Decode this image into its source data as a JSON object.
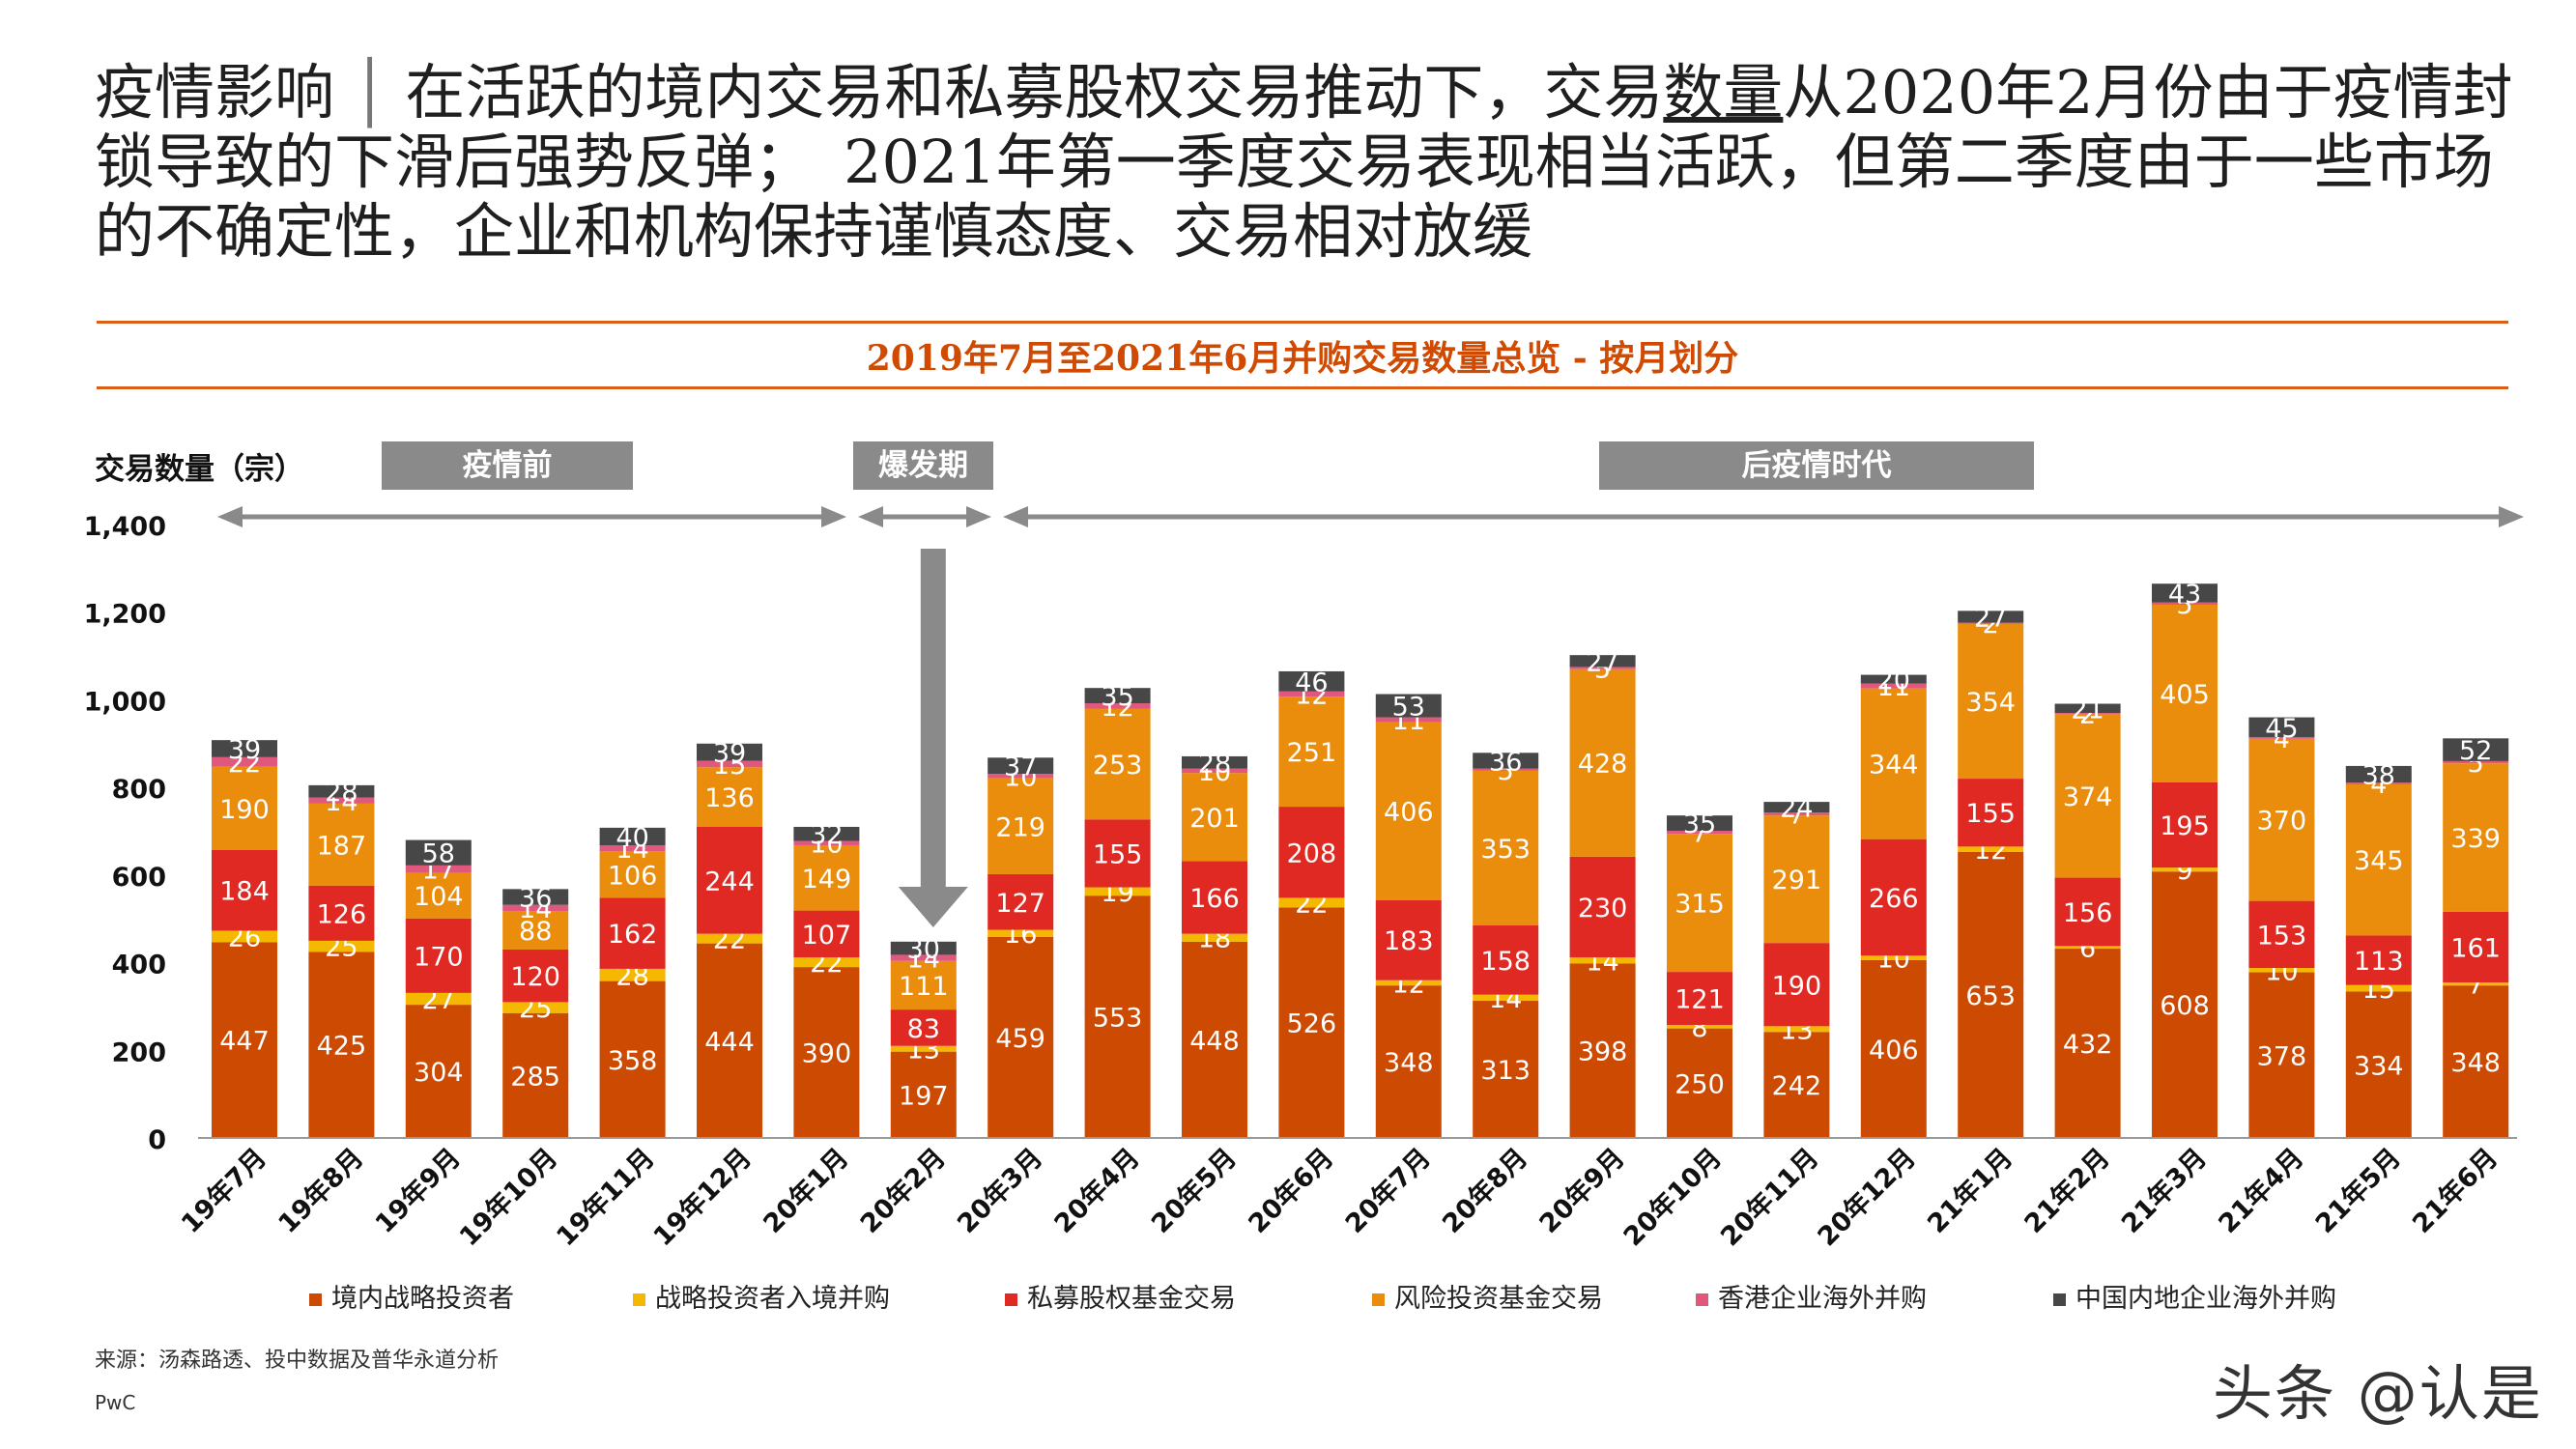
{
  "headline": {
    "topic": "疫情影响",
    "separator": "│",
    "text_before": "在活跃的境内交易和私募股权交易推动下，交易",
    "underlined": "数量",
    "text_after": "从2020年2月份由于疫情封锁导致的下滑后强势反弹；　2021年第一季度交易表现相当活跃，但第二季度由于一些市场的不确定性，企业和机构保持谨慎态度、交易相对放缓"
  },
  "chart_data": {
    "type": "bar",
    "stacked": true,
    "title": "2019年7月至2021年6月并购交易数量总览 - 按月划分",
    "ylabel": "交易数量（宗）",
    "ylim": [
      0,
      1400
    ],
    "yticks": [
      0,
      200,
      400,
      600,
      800,
      1000,
      1200,
      1400
    ],
    "yticklabels": [
      "0",
      "200",
      "400",
      "600",
      "800",
      "1,000",
      "1,200",
      "1,400"
    ],
    "grid": false,
    "legend_position": "bottom",
    "categories": [
      "19年7月",
      "19年8月",
      "19年9月",
      "19年10月",
      "19年11月",
      "19年12月",
      "20年1月",
      "20年2月",
      "20年3月",
      "20年4月",
      "20年5月",
      "20年6月",
      "20年7月",
      "20年8月",
      "20年9月",
      "20年10月",
      "20年11月",
      "20年12月",
      "21年1月",
      "21年2月",
      "21年3月",
      "21年4月",
      "21年5月",
      "21年6月"
    ],
    "series": [
      {
        "name": "境内战略投资者",
        "color": "#cc4a02",
        "label_color": "#ffffff",
        "values": [
          447,
          425,
          304,
          285,
          358,
          444,
          390,
          197,
          459,
          553,
          448,
          526,
          348,
          313,
          398,
          250,
          242,
          406,
          653,
          432,
          608,
          378,
          334,
          348
        ]
      },
      {
        "name": "战略投资者入境并购",
        "color": "#f5b800",
        "label_color": "#ffffff",
        "values": [
          26,
          25,
          27,
          25,
          28,
          22,
          22,
          13,
          16,
          19,
          18,
          22,
          12,
          14,
          14,
          8,
          13,
          10,
          12,
          6,
          9,
          10,
          15,
          7
        ]
      },
      {
        "name": "私募股权基金交易",
        "color": "#df2922",
        "label_color": "#ffffff",
        "values": [
          184,
          126,
          170,
          120,
          162,
          244,
          107,
          83,
          127,
          155,
          166,
          208,
          183,
          158,
          230,
          121,
          190,
          266,
          155,
          156,
          195,
          153,
          113,
          161
        ]
      },
      {
        "name": "风险投资基金交易",
        "color": "#ea8c0c",
        "label_color": "#ffffff",
        "values": [
          190,
          187,
          104,
          88,
          106,
          136,
          149,
          111,
          219,
          253,
          201,
          251,
          406,
          353,
          428,
          315,
          291,
          344,
          354,
          374,
          405,
          370,
          345,
          339
        ]
      },
      {
        "name": "香港企业海外并购",
        "color": "#e0587c",
        "label_color": "#ffffff",
        "values": [
          22,
          14,
          17,
          14,
          14,
          15,
          10,
          14,
          10,
          12,
          10,
          12,
          11,
          5,
          5,
          7,
          7,
          11,
          2,
          2,
          5,
          4,
          4,
          5
        ]
      },
      {
        "name": "中国内地企业海外并购",
        "color": "#474747",
        "label_color": "#ffffff",
        "values": [
          39,
          28,
          58,
          36,
          40,
          39,
          32,
          30,
          37,
          35,
          28,
          46,
          53,
          36,
          27,
          35,
          24,
          20,
          27,
          21,
          43,
          45,
          38,
          52
        ]
      }
    ],
    "phases": [
      {
        "label": "疫情前",
        "from": "19年7月",
        "to": "20年1月"
      },
      {
        "label": "爆发期",
        "from": "20年2月",
        "to": "20年2月"
      },
      {
        "label": "后疫情时代",
        "from": "20年3月",
        "to": "21年6月"
      }
    ],
    "annotation_arrow_at": "20年2月"
  },
  "footer": {
    "source": "来源：汤森路透、投中数据及普华永道分析",
    "brand": "PwC",
    "watermark": "头条 @认是"
  }
}
